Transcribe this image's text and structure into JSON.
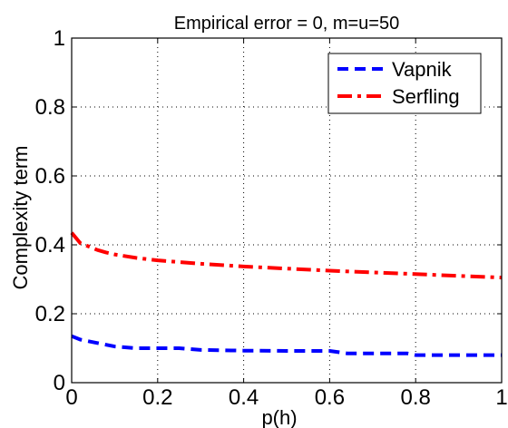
{
  "chart_data": {
    "type": "line",
    "title": "Empirical error = 0,  m=u=50",
    "xlabel": "p(h)",
    "ylabel": "Complexity term",
    "xlim": [
      0,
      1
    ],
    "ylim": [
      0,
      1
    ],
    "xticks": [
      0,
      0.2,
      0.4,
      0.6,
      0.8,
      1
    ],
    "xtick_labels": [
      "0",
      "0.2",
      "0.4",
      "0.6",
      "0.8",
      "1"
    ],
    "yticks": [
      0,
      0.2,
      0.4,
      0.6,
      0.8,
      1
    ],
    "ytick_labels": [
      "0",
      "0.2",
      "0.4",
      "0.6",
      "0.8",
      "1"
    ],
    "grid": true,
    "legend_position": "top-right",
    "series": [
      {
        "name": "Vapnik",
        "color": "#0000ff",
        "style": "dashed",
        "x": [
          0,
          0.02,
          0.04,
          0.06,
          0.08,
          0.1,
          0.15,
          0.2,
          0.25,
          0.3,
          0.4,
          0.5,
          0.6,
          0.64,
          0.7,
          0.78,
          0.8,
          0.9,
          1.0
        ],
        "y": [
          0.135,
          0.125,
          0.12,
          0.115,
          0.11,
          0.105,
          0.1,
          0.1,
          0.1,
          0.095,
          0.093,
          0.092,
          0.092,
          0.085,
          0.085,
          0.085,
          0.08,
          0.08,
          0.08
        ]
      },
      {
        "name": "Serfling",
        "color": "#ff0000",
        "style": "dashdot",
        "x": [
          0,
          0.02,
          0.04,
          0.06,
          0.08,
          0.1,
          0.15,
          0.2,
          0.3,
          0.4,
          0.5,
          0.6,
          0.7,
          0.8,
          0.9,
          1.0
        ],
        "y": [
          0.435,
          0.405,
          0.395,
          0.385,
          0.378,
          0.372,
          0.362,
          0.355,
          0.345,
          0.337,
          0.331,
          0.325,
          0.32,
          0.315,
          0.31,
          0.305
        ]
      }
    ]
  }
}
